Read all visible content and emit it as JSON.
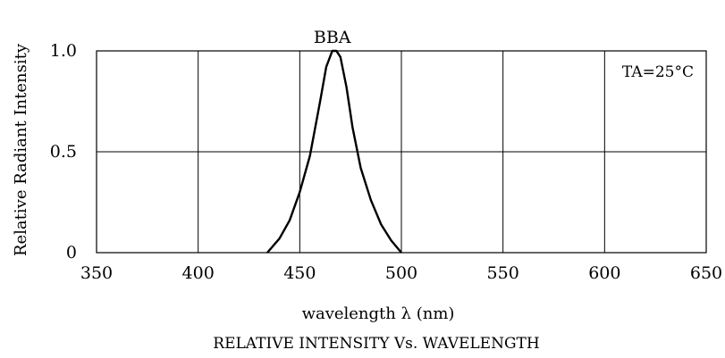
{
  "chart_data": {
    "type": "line",
    "title": "RELATIVE INTENSITY Vs. WAVELENGTH",
    "xlabel": "wavelength λ  (nm)",
    "ylabel": "Relative Radiant Intensity",
    "xlim": [
      350,
      650
    ],
    "ylim": [
      0,
      1.0
    ],
    "x_ticks": [
      "350",
      "400",
      "450",
      "500",
      "550",
      "600",
      "650"
    ],
    "y_ticks": [
      "0",
      "0.5",
      "1.0"
    ],
    "grid": true,
    "annotation": "TA=25°C",
    "series": [
      {
        "name": "BBA",
        "x": [
          434,
          440,
          445,
          450,
          455,
          460,
          463,
          466,
          468,
          470,
          473,
          476,
          480,
          485,
          490,
          495,
          500
        ],
        "y": [
          0.0,
          0.07,
          0.16,
          0.3,
          0.48,
          0.75,
          0.92,
          1.0,
          1.0,
          0.97,
          0.82,
          0.62,
          0.42,
          0.26,
          0.14,
          0.06,
          0.0
        ]
      }
    ]
  }
}
